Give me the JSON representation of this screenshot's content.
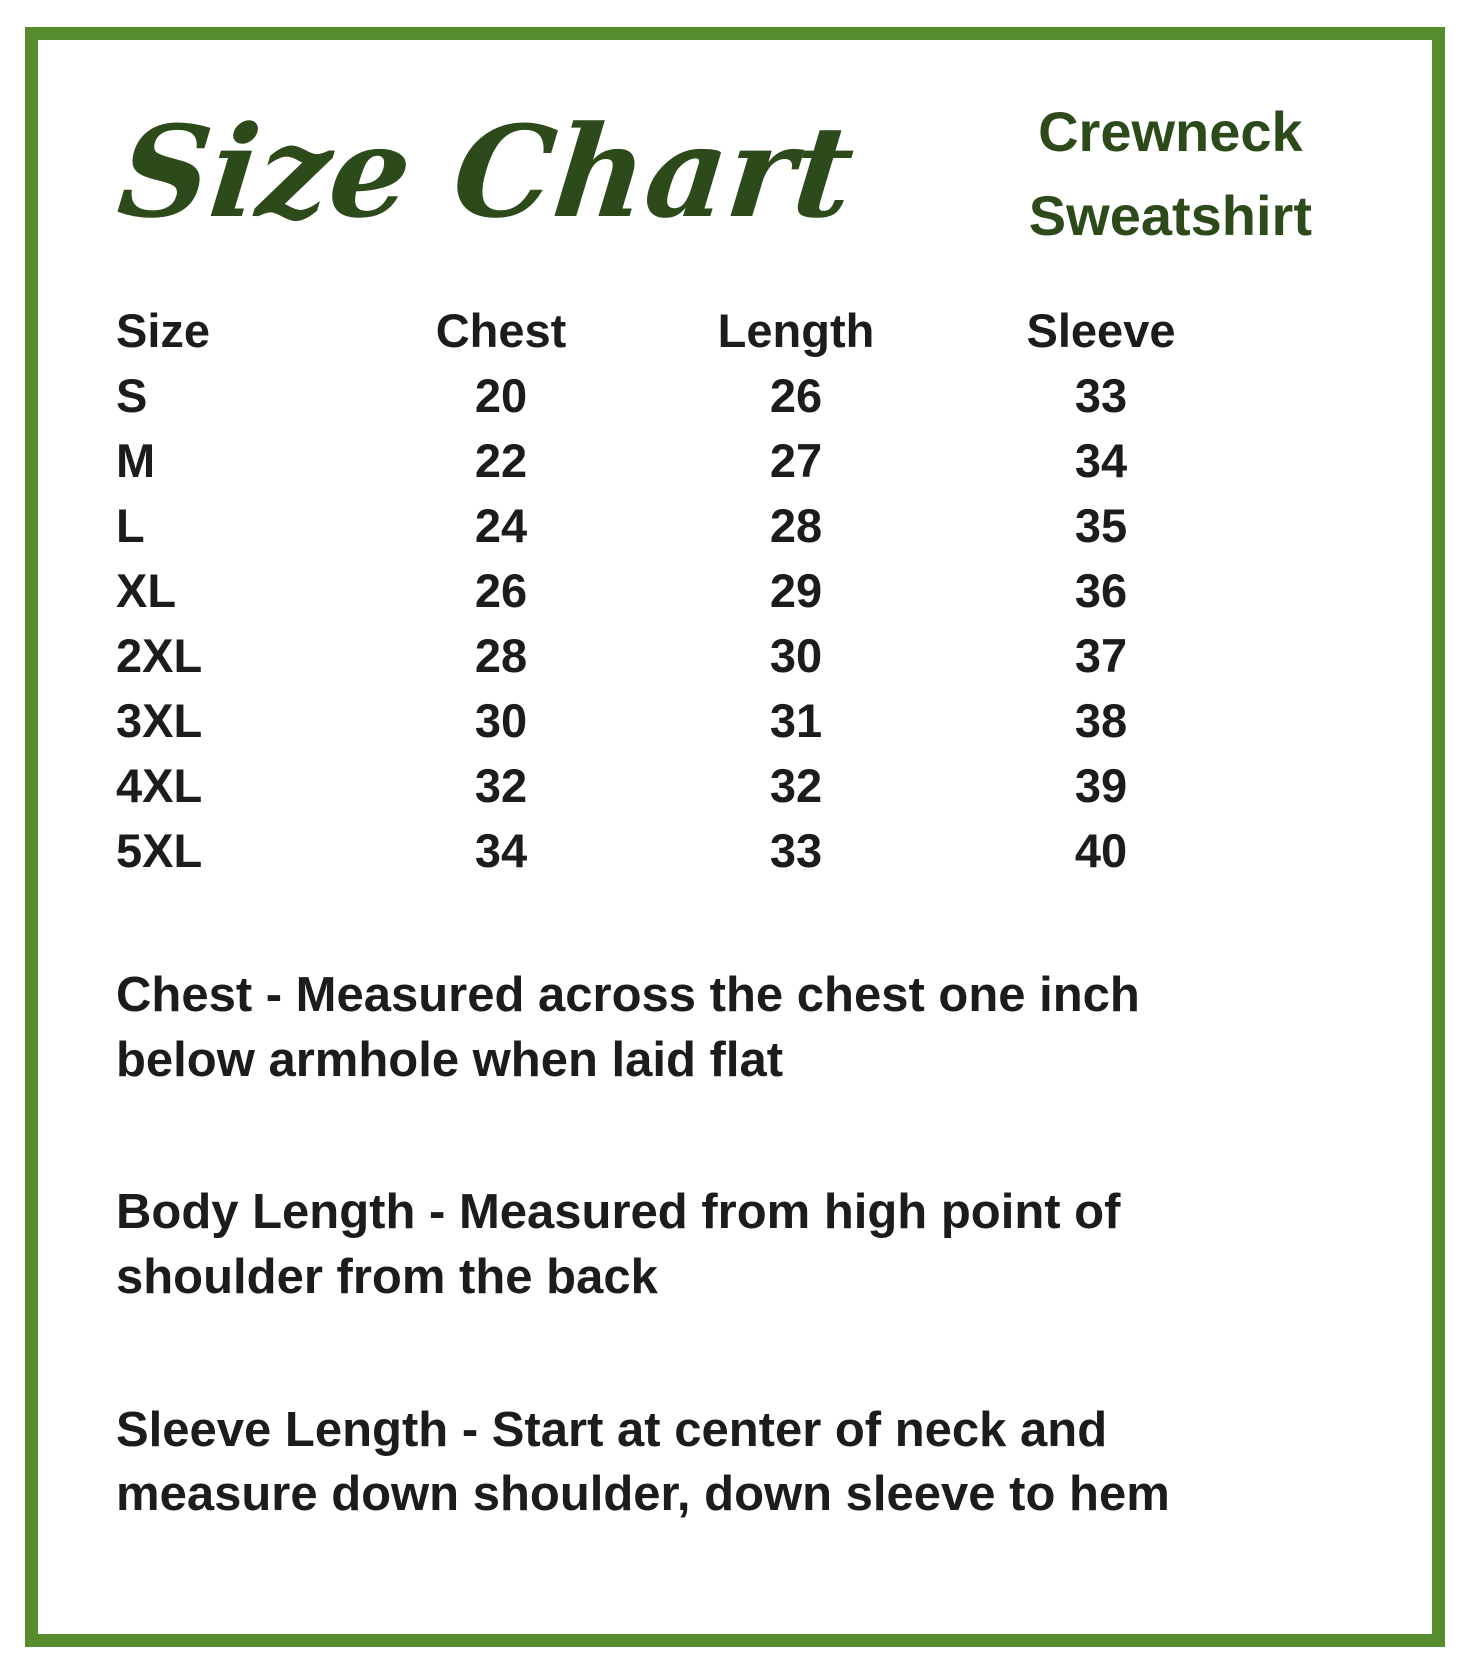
{
  "frame": {
    "border_color": "#568b2e"
  },
  "colors": {
    "accent_green": "#568b2e",
    "heading_green": "#2d4a1b",
    "text": "#1c1c1c",
    "background": "#ffffff"
  },
  "header": {
    "title": "Size Chart",
    "product_line1": "Crewneck",
    "product_line2": "Sweatshirt"
  },
  "size_table": {
    "columns": [
      "Size",
      "Chest",
      "Length",
      "Sleeve"
    ],
    "rows": [
      [
        "S",
        "20",
        "26",
        "33"
      ],
      [
        "M",
        "22",
        "27",
        "34"
      ],
      [
        "L",
        "24",
        "28",
        "35"
      ],
      [
        "XL",
        "26",
        "29",
        "36"
      ],
      [
        "2XL",
        "28",
        "30",
        "37"
      ],
      [
        "3XL",
        "30",
        "31",
        "38"
      ],
      [
        "4XL",
        "32",
        "32",
        "39"
      ],
      [
        "5XL",
        "34",
        "33",
        "40"
      ]
    ]
  },
  "notes": [
    {
      "lines": [
        "Chest - Measured across the chest one inch",
        "below armhole when laid flat"
      ]
    },
    {
      "lines": [
        "Body Length - Measured from high point of",
        "shoulder from the back"
      ]
    },
    {
      "lines": [
        "Sleeve Length - Start at center of neck and",
        "measure down shoulder, down sleeve to hem"
      ]
    }
  ],
  "chart_data": {
    "type": "table",
    "title": "Size Chart",
    "subtitle": "Crewneck Sweatshirt",
    "columns": [
      "Size",
      "Chest",
      "Length",
      "Sleeve"
    ],
    "rows": [
      [
        "S",
        20,
        26,
        33
      ],
      [
        "M",
        22,
        27,
        34
      ],
      [
        "L",
        24,
        28,
        35
      ],
      [
        "XL",
        26,
        29,
        36
      ],
      [
        "2XL",
        28,
        30,
        37
      ],
      [
        "3XL",
        30,
        31,
        38
      ],
      [
        "4XL",
        32,
        32,
        39
      ],
      [
        "5XL",
        34,
        33,
        40
      ]
    ],
    "annotations": [
      "Chest - Measured across the chest one inch below armhole when laid flat",
      "Body Length - Measured from high point of shoulder from the back",
      "Sleeve Length - Start at center of neck and measure down shoulder, down sleeve to hem"
    ]
  }
}
